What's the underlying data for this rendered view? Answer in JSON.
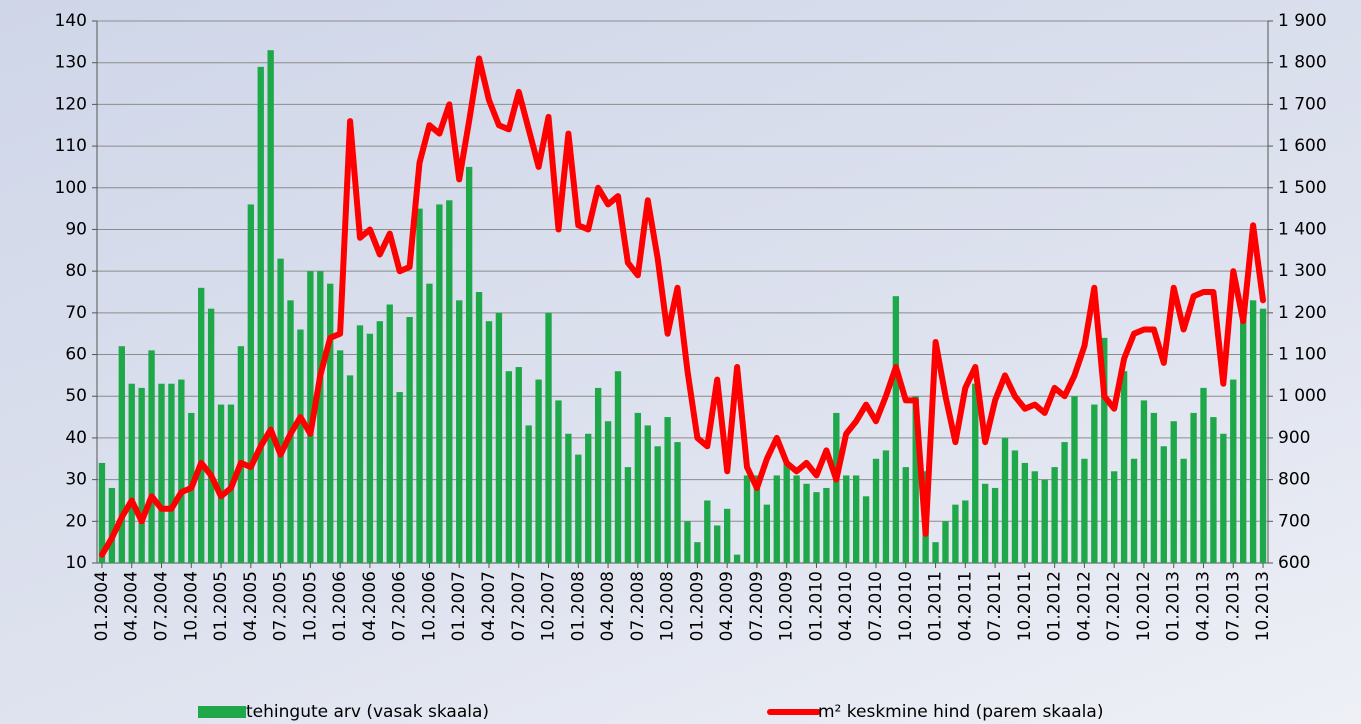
{
  "chart_data": {
    "type": "bar-line",
    "categories": [
      "01.2004",
      null,
      null,
      "04.2004",
      null,
      null,
      "07.2004",
      null,
      null,
      "10.2004",
      null,
      null,
      "01.2005",
      null,
      null,
      "04.2005",
      null,
      null,
      "07.2005",
      null,
      null,
      "10.2005",
      null,
      null,
      "01.2006",
      null,
      null,
      "04.2006",
      null,
      null,
      "07.2006",
      null,
      null,
      "10.2006",
      null,
      null,
      "01.2007",
      null,
      null,
      "04.2007",
      null,
      null,
      "07.2007",
      null,
      null,
      "10.2007",
      null,
      null,
      "01.2008",
      null,
      null,
      "04.2008",
      null,
      null,
      "07.2008",
      null,
      null,
      "10.2008",
      null,
      null,
      "01.2009",
      null,
      null,
      "04.2009",
      null,
      null,
      "07.2009",
      null,
      null,
      "10.2009",
      null,
      null,
      "01.2010",
      null,
      null,
      "04.2010",
      null,
      null,
      "07.2010",
      null,
      null,
      "10.2010",
      null,
      null,
      "01.2011",
      null,
      null,
      "04.2011",
      null,
      null,
      "07.2011",
      null,
      null,
      "10.2011",
      null,
      null,
      "01.2012",
      null,
      null,
      "04.2012",
      null,
      null,
      "07.2012",
      null,
      null,
      "10.2012",
      null,
      null,
      "01.2013",
      null,
      null,
      "04.2013",
      null,
      null,
      "07.2013",
      null,
      null,
      "10.2013"
    ],
    "series": [
      {
        "name": "tehingute arv (vasak skaala)",
        "type": "bar",
        "color": "#1fa84a",
        "values": [
          34,
          28,
          62,
          53,
          52,
          61,
          53,
          53,
          54,
          46,
          76,
          71,
          48,
          48,
          62,
          96,
          129,
          133,
          83,
          73,
          66,
          80,
          80,
          77,
          61,
          55,
          67,
          65,
          68,
          72,
          51,
          69,
          95,
          77,
          96,
          97,
          73,
          105,
          75,
          68,
          70,
          56,
          57,
          43,
          54,
          70,
          49,
          41,
          36,
          41,
          52,
          44,
          56,
          33,
          46,
          43,
          38,
          45,
          39,
          20,
          15,
          25,
          19,
          23,
          12,
          31,
          31,
          24,
          31,
          34,
          31,
          29,
          27,
          28,
          46,
          31,
          31,
          26,
          35,
          37,
          74,
          33,
          50,
          32,
          15,
          20,
          24,
          25,
          53,
          29,
          28,
          40,
          37,
          34,
          32,
          30,
          33,
          39,
          50,
          35,
          48,
          64,
          32,
          56,
          35,
          49,
          46,
          38,
          44,
          35,
          46,
          52,
          45,
          41,
          54,
          72,
          73,
          71
        ]
      },
      {
        "name": "m² keskmine hind (parem skaala)",
        "type": "line",
        "axis": "y2",
        "color": "#ff0000",
        "values": [
          620,
          660,
          710,
          750,
          700,
          760,
          730,
          730,
          770,
          780,
          840,
          810,
          760,
          780,
          840,
          830,
          880,
          920,
          860,
          910,
          950,
          910,
          1050,
          1140,
          1150,
          1660,
          1380,
          1400,
          1340,
          1390,
          1300,
          1310,
          1560,
          1650,
          1630,
          1700,
          1520,
          1660,
          1810,
          1710,
          1650,
          1640,
          1730,
          1640,
          1550,
          1670,
          1400,
          1630,
          1410,
          1400,
          1500,
          1460,
          1480,
          1320,
          1290,
          1470,
          1330,
          1150,
          1260,
          1060,
          900,
          880,
          1040,
          820,
          1070,
          830,
          780,
          850,
          900,
          840,
          820,
          840,
          810,
          870,
          800,
          910,
          940,
          980,
          940,
          1000,
          1070,
          990,
          990,
          670,
          1130,
          1000,
          890,
          1020,
          1070,
          890,
          990,
          1050,
          1000,
          970,
          980,
          960,
          1020,
          1000,
          1050,
          1120,
          1260,
          1000,
          970,
          1090,
          1150,
          1160,
          1160,
          1080,
          1260,
          1160,
          1240,
          1250,
          1250,
          1030,
          1300,
          1180,
          1410,
          1230
        ]
      }
    ],
    "ylim": [
      10,
      140
    ],
    "yticks": [
      10,
      20,
      30,
      40,
      50,
      60,
      70,
      80,
      90,
      100,
      110,
      120,
      130,
      140
    ],
    "y2lim": [
      600,
      1900
    ],
    "y2ticks": [
      600,
      700,
      800,
      900,
      {
        "value": 1000,
        "label": "1 000"
      },
      {
        "value": 1100,
        "label": "1 100"
      },
      {
        "value": 1200,
        "label": "1 200"
      },
      {
        "value": 1300,
        "label": "1 300"
      },
      {
        "value": 1400,
        "label": "1 400"
      },
      {
        "value": 1500,
        "label": "1 500"
      },
      {
        "value": 1600,
        "label": "1 600"
      },
      {
        "value": 1700,
        "label": "1 700"
      },
      {
        "value": 1800,
        "label": "1 800"
      },
      {
        "value": 1900,
        "label": "1 900"
      }
    ],
    "grid": true
  }
}
